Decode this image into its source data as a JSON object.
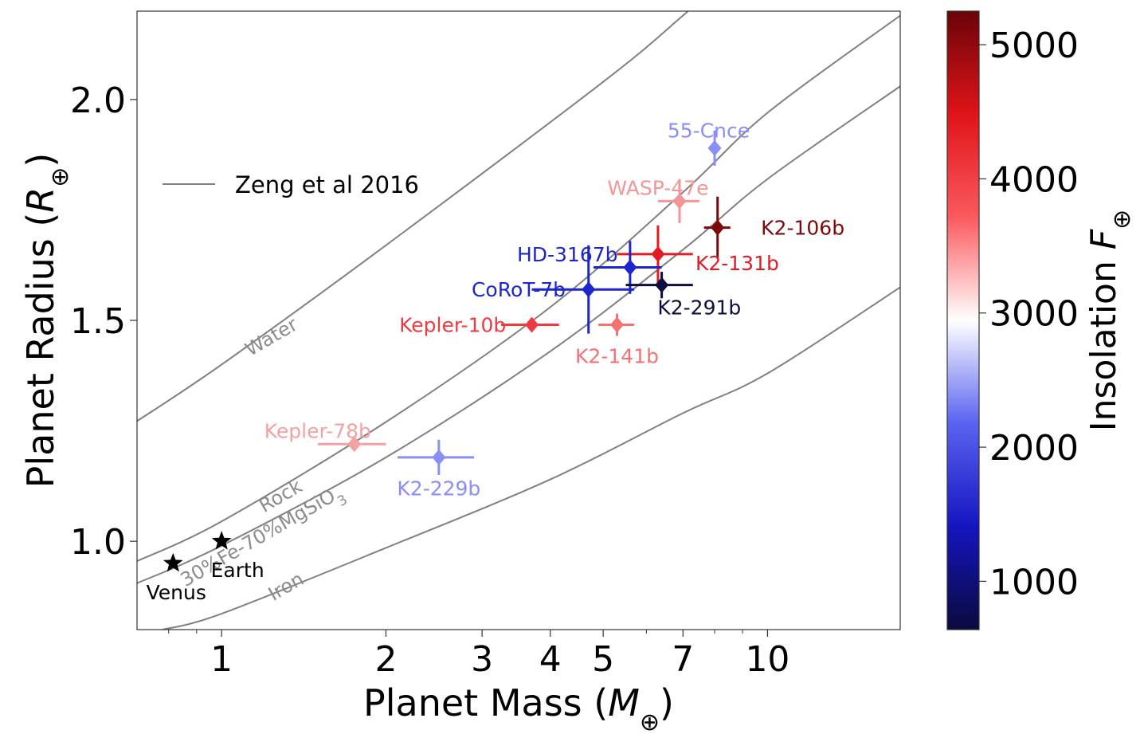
{
  "chart_data": {
    "type": "scatter",
    "xlabel": "Planet Mass (M⊕)",
    "ylabel": "Planet Radius (R⊕)",
    "xscale": "log",
    "xlim": [
      0.7,
      17.5
    ],
    "ylim": [
      0.8,
      2.2
    ],
    "xticks": [
      {
        "value": 1,
        "label": "1"
      },
      {
        "value": 2,
        "label": "2"
      },
      {
        "value": 3,
        "label": "3"
      },
      {
        "value": 4,
        "label": "4"
      },
      {
        "value": 5,
        "label": "5"
      },
      {
        "value": 7,
        "label": "7"
      },
      {
        "value": 10,
        "label": "10"
      }
    ],
    "x_minor_ticks": [
      0.8,
      0.9,
      6,
      8,
      9
    ],
    "yticks": [
      {
        "value": 1.0,
        "label": "1.0"
      },
      {
        "value": 1.5,
        "label": "1.5"
      },
      {
        "value": 2.0,
        "label": "2.0"
      }
    ],
    "grid": false,
    "legend": {
      "position": "upper-left",
      "entries": [
        {
          "label": "Zeng et al 2016",
          "color": "#808080"
        }
      ]
    },
    "colorbar": {
      "label": "Insolation F⊕",
      "min": 640,
      "max": 5250,
      "ticks": [
        {
          "value": 1000,
          "label": "1000"
        },
        {
          "value": 2000,
          "label": "2000"
        },
        {
          "value": 3000,
          "label": "3000"
        },
        {
          "value": 4000,
          "label": "4000"
        },
        {
          "value": 5000,
          "label": "5000"
        }
      ],
      "colormap": [
        "#0a0a3d",
        "#1515c0",
        "#5a63f0",
        "#ffffff",
        "#fb5a5e",
        "#e01419",
        "#6a0308"
      ]
    },
    "models": [
      {
        "name": "Water",
        "color": "#808080",
        "points": [
          [
            0.7,
            1.272
          ],
          [
            1.0,
            1.4
          ],
          [
            2.0,
            1.67
          ],
          [
            5.0,
            2.04
          ],
          [
            7.0,
            2.19
          ],
          [
            8.8,
            2.3
          ]
        ]
      },
      {
        "name": "Rock",
        "color": "#808080",
        "points": [
          [
            0.7,
            0.955
          ],
          [
            1.0,
            1.045
          ],
          [
            2.0,
            1.27
          ],
          [
            4.0,
            1.53
          ],
          [
            7.0,
            1.79
          ],
          [
            10.0,
            1.97
          ],
          [
            17.5,
            2.19
          ]
        ]
      },
      {
        "name": "30%Fe-70%MgSiO3",
        "color": "#808080",
        "points": [
          [
            0.7,
            0.905
          ],
          [
            1.0,
            0.99
          ],
          [
            2.0,
            1.19
          ],
          [
            4.0,
            1.43
          ],
          [
            7.0,
            1.66
          ],
          [
            10.0,
            1.82
          ],
          [
            17.5,
            2.03
          ]
        ]
      },
      {
        "name": "Iron",
        "color": "#808080",
        "points": [
          [
            0.78,
            0.8
          ],
          [
            1.0,
            0.836
          ],
          [
            2.0,
            0.985
          ],
          [
            4.0,
            1.14
          ],
          [
            7.0,
            1.29
          ],
          [
            10.0,
            1.38
          ],
          [
            17.5,
            1.575
          ]
        ]
      }
    ],
    "model_labels": [
      {
        "text": "Water",
        "x": 1.25,
        "y": 1.45,
        "angle": -30
      },
      {
        "text": "Rock",
        "x": 1.3,
        "y": 1.09,
        "angle": -30
      },
      {
        "text": "30%Fe-70%MgSiO",
        "subscript": "3",
        "x": 1.2,
        "y": 1.0,
        "angle": -30
      },
      {
        "text": "Iron",
        "x": 1.33,
        "y": 0.885,
        "angle": -30
      }
    ],
    "reference_points": [
      {
        "name": "Earth",
        "mass": 1.0,
        "radius": 1.0
      },
      {
        "name": "Venus",
        "mass": 0.815,
        "radius": 0.95
      }
    ],
    "series": [
      {
        "name": "55-Cnce",
        "mass": 8.0,
        "mass_err": 0.1,
        "radius": 1.89,
        "radius_err": 0.04,
        "insolation": 2450,
        "color": "#8a8ef8",
        "label_x": 7.8,
        "label_y": 1.93
      },
      {
        "name": "WASP-47e",
        "mass": 6.9,
        "mass_err": 0.6,
        "radius": 1.77,
        "radius_err": 0.05,
        "insolation": 3350,
        "color": "#f49696",
        "label_x": 6.3,
        "label_y": 1.8
      },
      {
        "name": "K2-106b",
        "mass": 8.1,
        "mass_err": 0.45,
        "radius": 1.71,
        "radius_err": 0.07,
        "insolation": 5000,
        "color": "#7a0a0c",
        "label_x": 11.6,
        "label_y": 1.71
      },
      {
        "name": "K2-131b",
        "mass": 6.3,
        "mass_err": 1.0,
        "radius": 1.65,
        "radius_err": 0.065,
        "insolation": 4200,
        "color": "#e21c22",
        "label_x": 8.8,
        "label_y": 1.63
      },
      {
        "name": "HD-3167b",
        "mass": 5.6,
        "mass_err": 0.8,
        "radius": 1.62,
        "radius_err": 0.06,
        "insolation": 1500,
        "color": "#1c26cc",
        "label_x": 4.3,
        "label_y": 1.65
      },
      {
        "name": "K2-291b",
        "mass": 6.4,
        "mass_err": 0.9,
        "radius": 1.58,
        "radius_err": 0.03,
        "insolation": 650,
        "color": "#0d0d3f",
        "label_x": 7.5,
        "label_y": 1.53
      },
      {
        "name": "CoRoT-7b",
        "mass": 4.7,
        "mass_err": 1.0,
        "radius": 1.57,
        "radius_err": 0.1,
        "insolation": 1650,
        "color": "#1c26cc",
        "label_x": 3.5,
        "label_y": 1.57
      },
      {
        "name": "Kepler-10b",
        "mass": 3.7,
        "mass_err": 0.45,
        "radius": 1.49,
        "radius_err": 0.015,
        "insolation": 4000,
        "color": "#f03a42",
        "label_x": 2.65,
        "label_y": 1.49
      },
      {
        "name": "K2-141b",
        "mass": 5.3,
        "mass_err": 0.4,
        "radius": 1.49,
        "radius_err": 0.025,
        "insolation": 3500,
        "color": "#f47272",
        "label_x": 5.3,
        "label_y": 1.42
      },
      {
        "name": "Kepler-78b",
        "mass": 1.75,
        "mass_err": 0.25,
        "radius": 1.22,
        "radius_err": 0.0,
        "insolation": 3450,
        "color": "#f3a2a2",
        "label_x": 1.5,
        "label_y": 1.25
      },
      {
        "name": "K2-229b",
        "mass": 2.5,
        "mass_err": 0.4,
        "radius": 1.19,
        "radius_err": 0.04,
        "insolation": 2450,
        "color": "#8a8ef8",
        "label_x": 2.5,
        "label_y": 1.12
      }
    ]
  }
}
